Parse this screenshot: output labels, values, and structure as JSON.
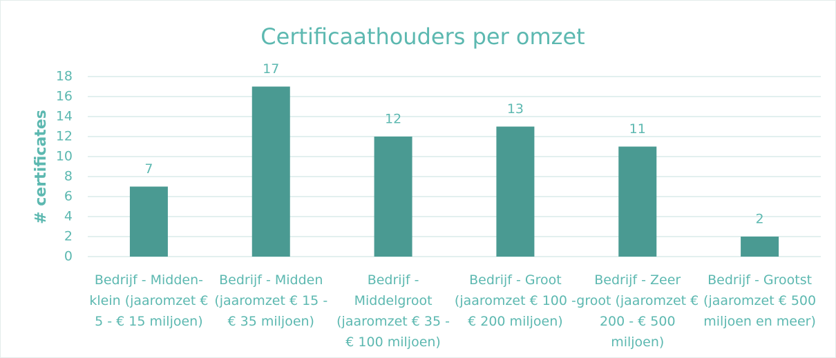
{
  "chart_data": {
    "type": "bar",
    "title": "Certificaathouders per omzet",
    "y_label": "# certificates",
    "categories": [
      "Bedrijf - Midden-klein (jaaromzet € 5 - € 15 miljoen)",
      "Bedrijf - Midden (jaaromzet € 15 - € 35 miljoen)",
      "Bedrijf - Middelgroot (jaaromzet € 35 - € 100 miljoen)",
      "Bedrijf - Groot (jaaromzet € 100 - € 200 miljoen)",
      "Bedrijf - Zeer groot (jaaromzet € 200 - € 500 miljoen)",
      "Bedrijf - Grootst (jaaromzet € 500 miljoen en meer)"
    ],
    "values": [
      7,
      17,
      12,
      13,
      11,
      2
    ],
    "color": "#4a9a92",
    "ylim": [
      0,
      18
    ],
    "yticks": [
      0,
      2,
      4,
      6,
      8,
      10,
      12,
      14,
      16,
      18
    ],
    "grid": true
  }
}
